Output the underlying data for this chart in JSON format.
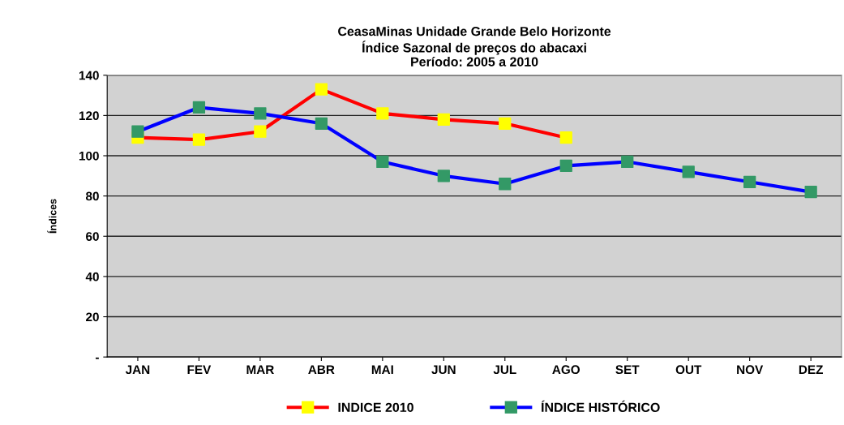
{
  "chart_data": {
    "type": "line",
    "title": "CeasaMinas Unidade Grande Belo Horizonte\nÍndice Sazonal de preços do abacaxi\nPeríodo: 2005 a 2010",
    "ylabel": "Índices",
    "categories": [
      "JAN",
      "FEV",
      "MAR",
      "ABR",
      "MAI",
      "JUN",
      "JUL",
      "AGO",
      "SET",
      "OUT",
      "NOV",
      "DEZ"
    ],
    "series": [
      {
        "name": "INDICE 2010",
        "color": "#ff0000",
        "colors": [
          "#ffff00",
          "#ffff00",
          "#ffff00",
          "#ffff00",
          "#ffff00",
          "#ffff00",
          "#ffff00",
          "#ffff00",
          null,
          null,
          null,
          null
        ],
        "values": [
          109,
          108,
          112,
          133,
          121,
          118,
          116,
          109,
          null,
          null,
          null,
          null
        ]
      },
      {
        "name": "ÍNDICE HISTÓRICO",
        "color": "#0000ff",
        "colors": [
          "#339966",
          "#339966",
          "#339966",
          "#339966",
          "#339966",
          "#339966",
          "#339966",
          "#339966",
          "#339966",
          "#339966",
          "#339966",
          "#339966"
        ],
        "values": [
          112,
          124,
          121,
          116,
          97,
          90,
          86,
          95,
          97,
          92,
          87,
          82
        ]
      }
    ],
    "ylim": [
      0,
      140
    ],
    "yticks": [
      {
        "value": 0,
        "label": "-"
      },
      20,
      40,
      60,
      80,
      100,
      120,
      140
    ],
    "grid": "y",
    "legend": "bottom",
    "marker": "square",
    "line_style": "solid"
  }
}
